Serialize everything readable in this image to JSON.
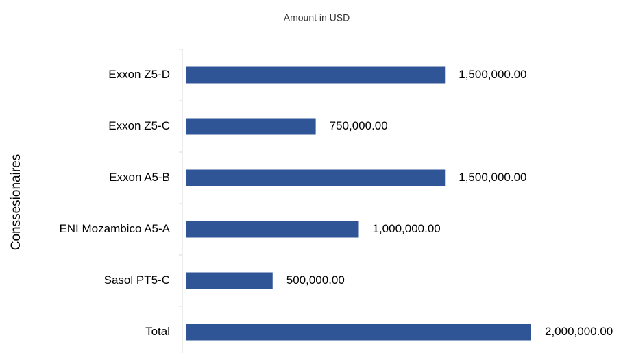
{
  "chart_data": {
    "type": "bar",
    "orientation": "horizontal",
    "title": "Amount in USD",
    "ylabel": "Conssesionaires",
    "categories": [
      "Exxon Z5-D",
      "Exxon Z5-C",
      "Exxon A5-B",
      "ENI Mozambico A5-A",
      "Sasol PT5-C",
      "Total"
    ],
    "values": [
      1500000,
      750000,
      1500000,
      1000000,
      500000,
      2000000
    ],
    "value_labels": [
      "1,500,000.00",
      "750,000.00",
      "1,500,000.00",
      "1,000,000.00",
      "500,000.00",
      "2,000,000.00"
    ],
    "color": "#2f5597",
    "xlim": [
      0,
      2000000
    ]
  }
}
